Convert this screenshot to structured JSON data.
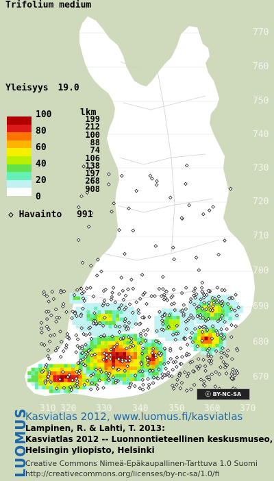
{
  "species": "Trifolium medium",
  "frequency_label": "Yleisyys",
  "frequency_value": "19.0",
  "legend": {
    "count_header": "lkm",
    "percent_labels": [
      "100",
      "80",
      "60",
      "40",
      "20",
      "0"
    ],
    "classes": [
      {
        "color": "#b00000",
        "count": "199"
      },
      {
        "color": "#dd1a1a",
        "count": "212"
      },
      {
        "color": "#ff7300",
        "count": "100"
      },
      {
        "color": "#ffb400",
        "count": "88"
      },
      {
        "color": "#f5f000",
        "count": "74"
      },
      {
        "color": "#b8f000",
        "count": "106"
      },
      {
        "color": "#62e24a",
        "count": "138"
      },
      {
        "color": "#66efb6",
        "count": "197"
      },
      {
        "color": "#c0f2f2",
        "count": "268"
      },
      {
        "color": "#ffffff",
        "count": "908"
      }
    ]
  },
  "observations_label": "Havainto",
  "observations_count": "991",
  "grid": {
    "y_ticks": [
      "770",
      "760",
      "750",
      "740",
      "730",
      "720",
      "710",
      "700",
      "690",
      "680",
      "670"
    ],
    "x_ticks": [
      "310",
      "320",
      "330",
      "340",
      "350",
      "360",
      "370"
    ]
  },
  "cc_badge": "BY-NC-SA",
  "publisher_logo": "LUOMUS",
  "footer": {
    "line1": "Kasviatlas 2012, www.luomus.fi/kasviatlas",
    "line2": "Lampinen, R. & Lahti, T. 2013:",
    "line3": "Kasviatlas 2012 -- Luonnontieteellinen keskusmuseo,",
    "line4": "Helsingin yliopisto, Helsinki",
    "line5": "Creative Commons Nimeä-Epäkaupallinen-Tarttuva 1.0 Suomi",
    "line6": "http://creativecommons.org/licenses/by-nc-sa/1.0/fi"
  }
}
